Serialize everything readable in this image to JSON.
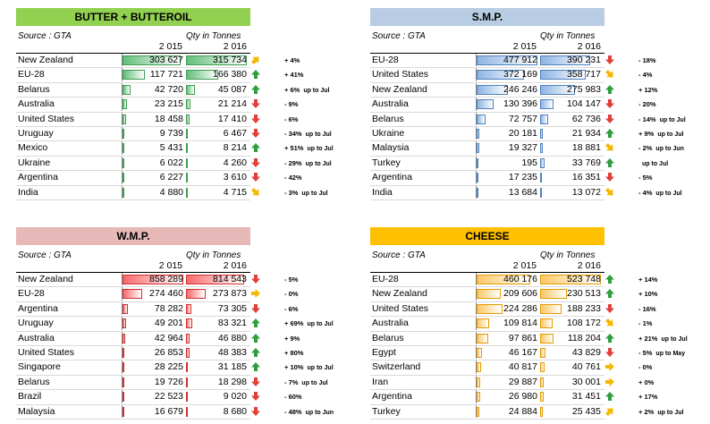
{
  "header_labels": {
    "source": "Source : GTA",
    "qty": "Qty in Tonnes",
    "year1": "2 015",
    "year2": "2 016"
  },
  "panels": [
    {
      "title": "BUTTER + BUTTEROIL",
      "title_bg": "#92d050",
      "bar_color": "#63be7b",
      "bar_border": "#3f9d52",
      "rows": [
        {
          "country": "New Zealand",
          "v2015": 303627,
          "v2015_label": "303 627",
          "v2016": 315734,
          "v2016_label": "315 734",
          "arrow": "up-right",
          "change": "+ 4%",
          "note": ""
        },
        {
          "country": "EU-28",
          "v2015": 117721,
          "v2015_label": "117 721",
          "v2016": 166380,
          "v2016_label": "166 380",
          "arrow": "up",
          "change": "+ 41%",
          "note": ""
        },
        {
          "country": "Belarus",
          "v2015": 42720,
          "v2015_label": "42 720",
          "v2016": 45087,
          "v2016_label": "45 087",
          "arrow": "up",
          "change": "+ 6%",
          "note": "up to Jul"
        },
        {
          "country": "Australia",
          "v2015": 23215,
          "v2015_label": "23 215",
          "v2016": 21214,
          "v2016_label": "21 214",
          "arrow": "down",
          "change": "- 9%",
          "note": ""
        },
        {
          "country": "United States",
          "v2015": 18458,
          "v2015_label": "18 458",
          "v2016": 17410,
          "v2016_label": "17 410",
          "arrow": "down",
          "change": "- 6%",
          "note": ""
        },
        {
          "country": "Uruguay",
          "v2015": 9739,
          "v2015_label": "9 739",
          "v2016": 6467,
          "v2016_label": "6 467",
          "arrow": "down",
          "change": "- 34%",
          "note": "up to Jul"
        },
        {
          "country": "Mexico",
          "v2015": 5431,
          "v2015_label": "5 431",
          "v2016": 8214,
          "v2016_label": "8 214",
          "arrow": "up",
          "change": "+ 51%",
          "note": "up to Jul"
        },
        {
          "country": "Ukraine",
          "v2015": 6022,
          "v2015_label": "6 022",
          "v2016": 4260,
          "v2016_label": "4 260",
          "arrow": "down",
          "change": "- 29%",
          "note": "up to Jul"
        },
        {
          "country": "Argentina",
          "v2015": 6227,
          "v2015_label": "6 227",
          "v2016": 3610,
          "v2016_label": "3 610",
          "arrow": "down",
          "change": "- 42%",
          "note": ""
        },
        {
          "country": "India",
          "v2015": 4880,
          "v2015_label": "4 880",
          "v2016": 4715,
          "v2016_label": "4 715",
          "arrow": "down-right",
          "change": "- 3%",
          "note": "up to Jul"
        }
      ]
    },
    {
      "title": "S.M.P.",
      "title_bg": "#b8cce4",
      "bar_color": "#8eb4e3",
      "bar_border": "#4f81bd",
      "rows": [
        {
          "country": "EU-28",
          "v2015": 477912,
          "v2015_label": "477 912",
          "v2016": 390231,
          "v2016_label": "390 231",
          "arrow": "down",
          "change": "- 18%",
          "note": ""
        },
        {
          "country": "United States",
          "v2015": 372169,
          "v2015_label": "372 169",
          "v2016": 358717,
          "v2016_label": "358 717",
          "arrow": "down-right",
          "change": "- 4%",
          "note": ""
        },
        {
          "country": "New Zealand",
          "v2015": 246246,
          "v2015_label": "246 246",
          "v2016": 275983,
          "v2016_label": "275 983",
          "arrow": "up",
          "change": "+ 12%",
          "note": ""
        },
        {
          "country": "Australia",
          "v2015": 130396,
          "v2015_label": "130 396",
          "v2016": 104147,
          "v2016_label": "104 147",
          "arrow": "down",
          "change": "- 20%",
          "note": ""
        },
        {
          "country": "Belarus",
          "v2015": 72757,
          "v2015_label": "72 757",
          "v2016": 62736,
          "v2016_label": "62 736",
          "arrow": "down",
          "change": "- 14%",
          "note": "up to Jul"
        },
        {
          "country": "Ukraine",
          "v2015": 20181,
          "v2015_label": "20 181",
          "v2016": 21934,
          "v2016_label": "21 934",
          "arrow": "up",
          "change": "+ 9%",
          "note": "up to Jul"
        },
        {
          "country": "Malaysia",
          "v2015": 19327,
          "v2015_label": "19 327",
          "v2016": 18881,
          "v2016_label": "18 881",
          "arrow": "down-right",
          "change": "- 2%",
          "note": "up to Jun"
        },
        {
          "country": "Turkey",
          "v2015": 195,
          "v2015_label": "195",
          "v2016": 33769,
          "v2016_label": "33 769",
          "arrow": "up",
          "change": "",
          "note": "up to Jul"
        },
        {
          "country": "Argentina",
          "v2015": 17235,
          "v2015_label": "17 235",
          "v2016": 16351,
          "v2016_label": "16 351",
          "arrow": "down",
          "change": "- 5%",
          "note": ""
        },
        {
          "country": "India",
          "v2015": 13684,
          "v2015_label": "13 684",
          "v2016": 13072,
          "v2016_label": "13 072",
          "arrow": "down-right",
          "change": "- 4%",
          "note": "up to Jul"
        }
      ]
    },
    {
      "title": "W.M.P.",
      "title_bg": "#e6b8b7",
      "bar_color": "#f8696b",
      "bar_border": "#d03030",
      "rows": [
        {
          "country": "New Zealand",
          "v2015": 858289,
          "v2015_label": "858 289",
          "v2016": 814543,
          "v2016_label": "814 543",
          "arrow": "down",
          "change": "- 5%",
          "note": ""
        },
        {
          "country": "EU-28",
          "v2015": 274460,
          "v2015_label": "274 460",
          "v2016": 273873,
          "v2016_label": "273 873",
          "arrow": "right",
          "change": "- 0%",
          "note": ""
        },
        {
          "country": "Argentina",
          "v2015": 78282,
          "v2015_label": "78 282",
          "v2016": 73305,
          "v2016_label": "73 305",
          "arrow": "down",
          "change": "- 6%",
          "note": ""
        },
        {
          "country": "Uruguay",
          "v2015": 49201,
          "v2015_label": "49 201",
          "v2016": 83321,
          "v2016_label": "83 321",
          "arrow": "up",
          "change": "+ 69%",
          "note": "up to Jul"
        },
        {
          "country": "Australia",
          "v2015": 42964,
          "v2015_label": "42 964",
          "v2016": 46880,
          "v2016_label": "46 880",
          "arrow": "up",
          "change": "+ 9%",
          "note": ""
        },
        {
          "country": "United States",
          "v2015": 26853,
          "v2015_label": "26 853",
          "v2016": 48383,
          "v2016_label": "48 383",
          "arrow": "up",
          "change": "+ 80%",
          "note": ""
        },
        {
          "country": "Singapore",
          "v2015": 28225,
          "v2015_label": "28 225",
          "v2016": 31185,
          "v2016_label": "31 185",
          "arrow": "up",
          "change": "+ 10%",
          "note": "up to Jul"
        },
        {
          "country": "Belarus",
          "v2015": 19726,
          "v2015_label": "19 726",
          "v2016": 18298,
          "v2016_label": "18 298",
          "arrow": "down",
          "change": "- 7%",
          "note": "up to Jul"
        },
        {
          "country": "Brazil",
          "v2015": 22523,
          "v2015_label": "22 523",
          "v2016": 9020,
          "v2016_label": "9 020",
          "arrow": "down",
          "change": "- 60%",
          "note": ""
        },
        {
          "country": "Malaysia",
          "v2015": 16679,
          "v2015_label": "16 679",
          "v2016": 8680,
          "v2016_label": "8 680",
          "arrow": "down",
          "change": "- 48%",
          "note": "up to Jun"
        }
      ]
    },
    {
      "title": "CHEESE",
      "title_bg": "#ffc000",
      "bar_color": "#fcc867",
      "bar_border": "#e69b00",
      "rows": [
        {
          "country": "EU-28",
          "v2015": 460176,
          "v2015_label": "460 176",
          "v2016": 523748,
          "v2016_label": "523 748",
          "arrow": "up",
          "change": "+ 14%",
          "note": ""
        },
        {
          "country": "New Zealand",
          "v2015": 209606,
          "v2015_label": "209 606",
          "v2016": 230513,
          "v2016_label": "230 513",
          "arrow": "up",
          "change": "+ 10%",
          "note": ""
        },
        {
          "country": "United States",
          "v2015": 224286,
          "v2015_label": "224 286",
          "v2016": 188233,
          "v2016_label": "188 233",
          "arrow": "down",
          "change": "- 16%",
          "note": ""
        },
        {
          "country": "Australia",
          "v2015": 109814,
          "v2015_label": "109 814",
          "v2016": 108172,
          "v2016_label": "108 172",
          "arrow": "down-right",
          "change": "- 1%",
          "note": ""
        },
        {
          "country": "Belarus",
          "v2015": 97861,
          "v2015_label": "97 861",
          "v2016": 118204,
          "v2016_label": "118 204",
          "arrow": "up",
          "change": "+ 21%",
          "note": "up to Jul"
        },
        {
          "country": "Egypt",
          "v2015": 46167,
          "v2015_label": "46 167",
          "v2016": 43829,
          "v2016_label": "43 829",
          "arrow": "down",
          "change": "- 5%",
          "note": "up to May"
        },
        {
          "country": "Switzerland",
          "v2015": 40817,
          "v2015_label": "40 817",
          "v2016": 40761,
          "v2016_label": "40 761",
          "arrow": "right",
          "change": "- 0%",
          "note": ""
        },
        {
          "country": "Iran",
          "v2015": 29887,
          "v2015_label": "29 887",
          "v2016": 30001,
          "v2016_label": "30 001",
          "arrow": "right",
          "change": "+ 0%",
          "note": ""
        },
        {
          "country": "Argentina",
          "v2015": 26980,
          "v2015_label": "26 980",
          "v2016": 31451,
          "v2016_label": "31 451",
          "arrow": "up",
          "change": "+ 17%",
          "note": ""
        },
        {
          "country": "Turkey",
          "v2015": 24884,
          "v2015_label": "24 884",
          "v2016": 25435,
          "v2016_label": "25 435",
          "arrow": "up-right",
          "change": "+ 2%",
          "note": "up to Jul"
        }
      ]
    }
  ],
  "chart_data": [
    {
      "type": "table",
      "title": "BUTTER + BUTTEROIL",
      "columns": [
        "2 015",
        "2 016"
      ],
      "categories": [
        "New Zealand",
        "EU-28",
        "Belarus",
        "Australia",
        "United States",
        "Uruguay",
        "Mexico",
        "Ukraine",
        "Argentina",
        "India"
      ],
      "series": [
        {
          "name": "2 015",
          "values": [
            303627,
            117721,
            42720,
            23215,
            18458,
            9739,
            5431,
            6022,
            6227,
            4880
          ]
        },
        {
          "name": "2 016",
          "values": [
            315734,
            166380,
            45087,
            21214,
            17410,
            6467,
            8214,
            4260,
            3610,
            4715
          ]
        }
      ]
    },
    {
      "type": "table",
      "title": "S.M.P.",
      "columns": [
        "2 015",
        "2 016"
      ],
      "categories": [
        "EU-28",
        "United States",
        "New Zealand",
        "Australia",
        "Belarus",
        "Ukraine",
        "Malaysia",
        "Turkey",
        "Argentina",
        "India"
      ],
      "series": [
        {
          "name": "2 015",
          "values": [
            477912,
            372169,
            246246,
            130396,
            72757,
            20181,
            19327,
            195,
            17235,
            13684
          ]
        },
        {
          "name": "2 016",
          "values": [
            390231,
            358717,
            275983,
            104147,
            62736,
            21934,
            18881,
            33769,
            16351,
            13072
          ]
        }
      ]
    },
    {
      "type": "table",
      "title": "W.M.P.",
      "columns": [
        "2 015",
        "2 016"
      ],
      "categories": [
        "New Zealand",
        "EU-28",
        "Argentina",
        "Uruguay",
        "Australia",
        "United States",
        "Singapore",
        "Belarus",
        "Brazil",
        "Malaysia"
      ],
      "series": [
        {
          "name": "2 015",
          "values": [
            858289,
            274460,
            78282,
            49201,
            42964,
            26853,
            28225,
            19726,
            22523,
            16679
          ]
        },
        {
          "name": "2 016",
          "values": [
            814543,
            273873,
            73305,
            83321,
            46880,
            48383,
            31185,
            18298,
            9020,
            8680
          ]
        }
      ]
    },
    {
      "type": "table",
      "title": "CHEESE",
      "columns": [
        "2 015",
        "2 016"
      ],
      "categories": [
        "EU-28",
        "New Zealand",
        "United States",
        "Australia",
        "Belarus",
        "Egypt",
        "Switzerland",
        "Iran",
        "Argentina",
        "Turkey"
      ],
      "series": [
        {
          "name": "2 015",
          "values": [
            460176,
            209606,
            224286,
            109814,
            97861,
            46167,
            40817,
            29887,
            26980,
            24884
          ]
        },
        {
          "name": "2 016",
          "values": [
            523748,
            230513,
            188233,
            108172,
            118204,
            43829,
            40761,
            30001,
            31451,
            25435
          ]
        }
      ]
    }
  ]
}
